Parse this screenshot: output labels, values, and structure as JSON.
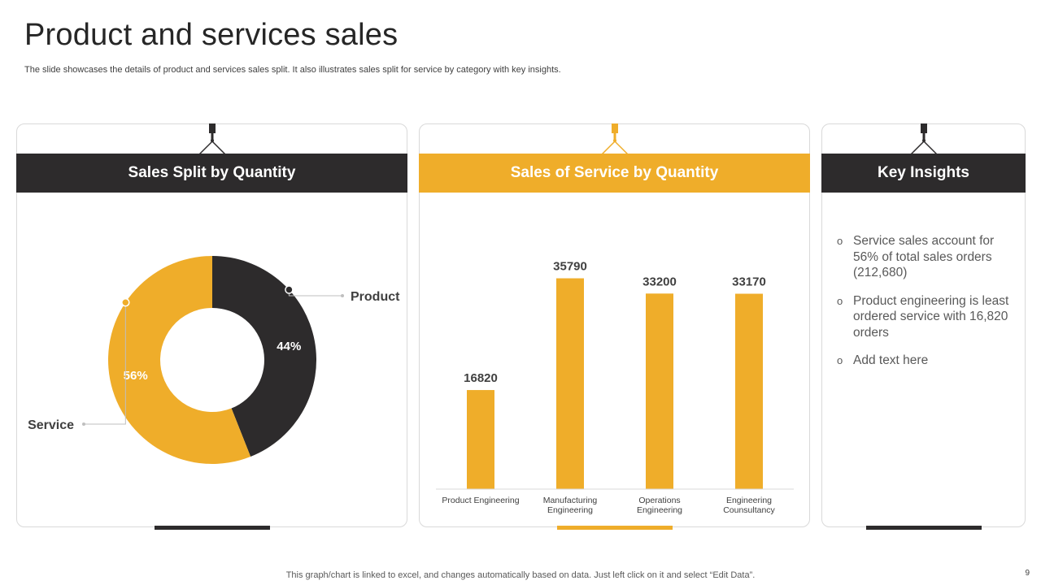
{
  "slide": {
    "title": "Product and services sales",
    "subtitle": "The slide showcases the details of product and services sales split. It also illustrates sales split for service by category with key insights.",
    "footer_note": "This graph/chart is linked to excel,  and changes automatically based on data. Just left click on it and select “Edit Data”.",
    "page_number": "9"
  },
  "cards": {
    "split": {
      "header": "Sales Split by Quantity"
    },
    "service": {
      "header": "Sales of Service by Quantity"
    },
    "insights": {
      "header": "Key Insights",
      "items": [
        "Service sales account for 56% of total sales orders (212,680)",
        "Product engineering is least ordered service with 16,820 orders",
        "Add text here"
      ],
      "bullet": "o"
    }
  },
  "colors": {
    "gold": "#efad2a",
    "dark": "#2d2b2c"
  },
  "chart_data": [
    {
      "type": "pie",
      "variant": "donut",
      "title": "Sales Split by Quantity",
      "categories": [
        "Product",
        "Service"
      ],
      "values": [
        44,
        56
      ],
      "labels": [
        "44%",
        "56%"
      ],
      "colors": [
        "#2d2b2c",
        "#efad2a"
      ]
    },
    {
      "type": "bar",
      "title": "Sales of Service by Quantity",
      "categories": [
        "Product Engineering",
        "Manufacturing Engineering",
        "Operations Engineering",
        "Engineering Counsultancy"
      ],
      "category_lines": [
        [
          "Product Engineering"
        ],
        [
          "Manufacturing",
          "Engineering"
        ],
        [
          "Operations",
          "Engineering"
        ],
        [
          "Engineering",
          "Counsultancy"
        ]
      ],
      "values": [
        16820,
        35790,
        33200,
        33170
      ],
      "value_labels": [
        "16820",
        "35790",
        "33200",
        "33170"
      ],
      "ylim": [
        0,
        40000
      ],
      "grid": false,
      "color": "#efad2a"
    }
  ]
}
